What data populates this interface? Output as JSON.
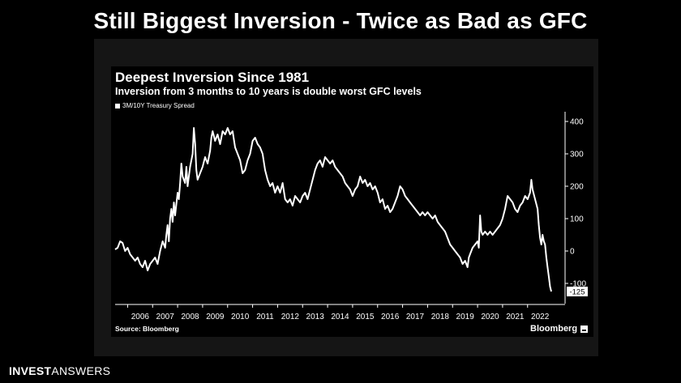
{
  "slide": {
    "title": "Still Biggest Inversion - Twice as Bad as GFC",
    "footer_bold": "INVEST",
    "footer_light": "ANSWERS"
  },
  "chart_data": {
    "type": "line",
    "title": "Deepest Inversion Since 1981",
    "subtitle": "Inversion from 3 months to 10 years is double worst GFC levels",
    "series": [
      {
        "name": "3M/10Y Treasury Spread",
        "color": "#ffffff",
        "points": [
          [
            2005.5,
            5
          ],
          [
            2005.6,
            10
          ],
          [
            2005.7,
            30
          ],
          [
            2005.8,
            25
          ],
          [
            2005.9,
            0
          ],
          [
            2006.0,
            10
          ],
          [
            2006.1,
            -10
          ],
          [
            2006.2,
            -20
          ],
          [
            2006.3,
            -30
          ],
          [
            2006.4,
            -20
          ],
          [
            2006.5,
            -40
          ],
          [
            2006.6,
            -50
          ],
          [
            2006.7,
            -30
          ],
          [
            2006.8,
            -60
          ],
          [
            2006.9,
            -40
          ],
          [
            2007.0,
            -30
          ],
          [
            2007.1,
            -20
          ],
          [
            2007.2,
            -40
          ],
          [
            2007.3,
            0
          ],
          [
            2007.4,
            30
          ],
          [
            2007.5,
            10
          ],
          [
            2007.55,
            50
          ],
          [
            2007.6,
            80
          ],
          [
            2007.65,
            30
          ],
          [
            2007.7,
            100
          ],
          [
            2007.75,
            130
          ],
          [
            2007.8,
            90
          ],
          [
            2007.85,
            150
          ],
          [
            2007.9,
            110
          ],
          [
            2008.0,
            180
          ],
          [
            2008.05,
            160
          ],
          [
            2008.1,
            210
          ],
          [
            2008.15,
            270
          ],
          [
            2008.2,
            230
          ],
          [
            2008.3,
            210
          ],
          [
            2008.35,
            260
          ],
          [
            2008.4,
            200
          ],
          [
            2008.5,
            260
          ],
          [
            2008.6,
            300
          ],
          [
            2008.65,
            380
          ],
          [
            2008.7,
            330
          ],
          [
            2008.75,
            250
          ],
          [
            2008.8,
            220
          ],
          [
            2008.9,
            240
          ],
          [
            2009.0,
            260
          ],
          [
            2009.1,
            290
          ],
          [
            2009.2,
            270
          ],
          [
            2009.3,
            310
          ],
          [
            2009.35,
            350
          ],
          [
            2009.4,
            370
          ],
          [
            2009.5,
            340
          ],
          [
            2009.6,
            360
          ],
          [
            2009.7,
            330
          ],
          [
            2009.8,
            370
          ],
          [
            2009.9,
            360
          ],
          [
            2010.0,
            380
          ],
          [
            2010.1,
            360
          ],
          [
            2010.2,
            370
          ],
          [
            2010.3,
            320
          ],
          [
            2010.4,
            300
          ],
          [
            2010.5,
            280
          ],
          [
            2010.6,
            240
          ],
          [
            2010.7,
            250
          ],
          [
            2010.8,
            280
          ],
          [
            2010.9,
            300
          ],
          [
            2011.0,
            340
          ],
          [
            2011.1,
            350
          ],
          [
            2011.2,
            330
          ],
          [
            2011.3,
            320
          ],
          [
            2011.4,
            300
          ],
          [
            2011.5,
            250
          ],
          [
            2011.6,
            220
          ],
          [
            2011.7,
            200
          ],
          [
            2011.8,
            210
          ],
          [
            2011.9,
            180
          ],
          [
            2012.0,
            200
          ],
          [
            2012.1,
            180
          ],
          [
            2012.2,
            210
          ],
          [
            2012.3,
            160
          ],
          [
            2012.4,
            150
          ],
          [
            2012.5,
            160
          ],
          [
            2012.6,
            140
          ],
          [
            2012.7,
            170
          ],
          [
            2012.8,
            160
          ],
          [
            2012.9,
            150
          ],
          [
            2013.0,
            170
          ],
          [
            2013.1,
            180
          ],
          [
            2013.2,
            160
          ],
          [
            2013.3,
            190
          ],
          [
            2013.4,
            220
          ],
          [
            2013.5,
            250
          ],
          [
            2013.6,
            270
          ],
          [
            2013.7,
            280
          ],
          [
            2013.8,
            260
          ],
          [
            2013.9,
            290
          ],
          [
            2014.0,
            280
          ],
          [
            2014.1,
            270
          ],
          [
            2014.2,
            280
          ],
          [
            2014.3,
            260
          ],
          [
            2014.4,
            250
          ],
          [
            2014.5,
            240
          ],
          [
            2014.6,
            230
          ],
          [
            2014.7,
            210
          ],
          [
            2014.8,
            200
          ],
          [
            2014.9,
            190
          ],
          [
            2015.0,
            170
          ],
          [
            2015.1,
            190
          ],
          [
            2015.2,
            200
          ],
          [
            2015.3,
            230
          ],
          [
            2015.4,
            210
          ],
          [
            2015.5,
            220
          ],
          [
            2015.6,
            200
          ],
          [
            2015.7,
            210
          ],
          [
            2015.8,
            190
          ],
          [
            2015.9,
            200
          ],
          [
            2016.0,
            180
          ],
          [
            2016.1,
            150
          ],
          [
            2016.2,
            160
          ],
          [
            2016.3,
            130
          ],
          [
            2016.4,
            140
          ],
          [
            2016.5,
            120
          ],
          [
            2016.6,
            130
          ],
          [
            2016.7,
            150
          ],
          [
            2016.8,
            170
          ],
          [
            2016.9,
            200
          ],
          [
            2017.0,
            190
          ],
          [
            2017.1,
            170
          ],
          [
            2017.2,
            160
          ],
          [
            2017.3,
            150
          ],
          [
            2017.4,
            140
          ],
          [
            2017.5,
            130
          ],
          [
            2017.6,
            120
          ],
          [
            2017.7,
            110
          ],
          [
            2017.8,
            120
          ],
          [
            2017.9,
            110
          ],
          [
            2018.0,
            120
          ],
          [
            2018.1,
            110
          ],
          [
            2018.2,
            100
          ],
          [
            2018.3,
            110
          ],
          [
            2018.4,
            90
          ],
          [
            2018.5,
            80
          ],
          [
            2018.6,
            70
          ],
          [
            2018.7,
            60
          ],
          [
            2018.8,
            40
          ],
          [
            2018.9,
            20
          ],
          [
            2019.0,
            10
          ],
          [
            2019.1,
            0
          ],
          [
            2019.2,
            -10
          ],
          [
            2019.3,
            -20
          ],
          [
            2019.4,
            -40
          ],
          [
            2019.5,
            -30
          ],
          [
            2019.6,
            -50
          ],
          [
            2019.65,
            -20
          ],
          [
            2019.7,
            -10
          ],
          [
            2019.8,
            10
          ],
          [
            2019.9,
            20
          ],
          [
            2020.0,
            30
          ],
          [
            2020.05,
            10
          ],
          [
            2020.1,
            110
          ],
          [
            2020.15,
            60
          ],
          [
            2020.2,
            50
          ],
          [
            2020.3,
            60
          ],
          [
            2020.4,
            50
          ],
          [
            2020.5,
            60
          ],
          [
            2020.6,
            50
          ],
          [
            2020.7,
            60
          ],
          [
            2020.8,
            70
          ],
          [
            2020.9,
            80
          ],
          [
            2021.0,
            100
          ],
          [
            2021.1,
            130
          ],
          [
            2021.2,
            170
          ],
          [
            2021.3,
            160
          ],
          [
            2021.4,
            150
          ],
          [
            2021.5,
            130
          ],
          [
            2021.6,
            120
          ],
          [
            2021.7,
            140
          ],
          [
            2021.8,
            150
          ],
          [
            2021.9,
            170
          ],
          [
            2022.0,
            160
          ],
          [
            2022.1,
            180
          ],
          [
            2022.15,
            220
          ],
          [
            2022.2,
            190
          ],
          [
            2022.3,
            160
          ],
          [
            2022.4,
            130
          ],
          [
            2022.45,
            80
          ],
          [
            2022.5,
            40
          ],
          [
            2022.55,
            20
          ],
          [
            2022.6,
            50
          ],
          [
            2022.65,
            30
          ],
          [
            2022.7,
            20
          ],
          [
            2022.75,
            -20
          ],
          [
            2022.8,
            -50
          ],
          [
            2022.85,
            -80
          ],
          [
            2022.9,
            -110
          ],
          [
            2022.95,
            -125
          ]
        ]
      }
    ],
    "x_ticks": [
      2006,
      2007,
      2008,
      2009,
      2010,
      2011,
      2012,
      2013,
      2014,
      2015,
      2016,
      2017,
      2018,
      2019,
      2020,
      2021,
      2022
    ],
    "y_ticks": [
      -100,
      0,
      100,
      200,
      300,
      400
    ],
    "xlim": [
      2005.5,
      2023.5
    ],
    "ylim": [
      -150,
      420
    ],
    "y_axis_position": "right",
    "grid": false,
    "legend_position": "top-left",
    "last_value_label": "-125",
    "source": "Source: Bloomberg",
    "brand": "Bloomberg"
  }
}
